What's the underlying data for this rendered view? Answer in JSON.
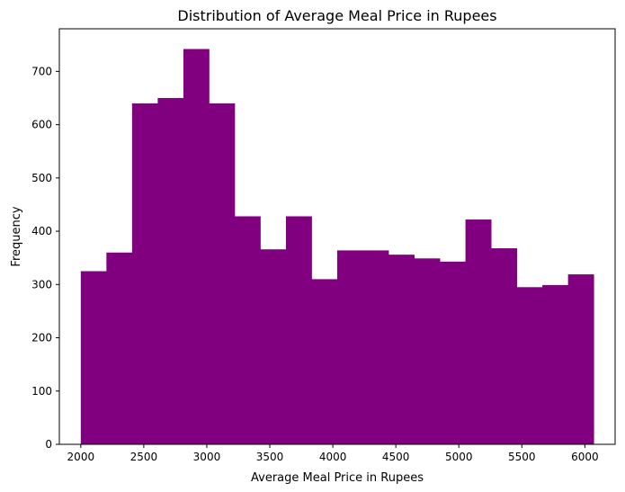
{
  "chart_data": {
    "type": "bar",
    "title": "Distribution of Average Meal Price in Rupees",
    "xlabel": "Average Meal Price in Rupees",
    "ylabel": "Frequency",
    "color": "#800080",
    "bin_edges": [
      2000,
      2203.5,
      2407,
      2610.5,
      2814,
      3017.5,
      3221,
      3424.5,
      3628,
      3831.5,
      4035,
      4238.5,
      4442,
      4645.5,
      4849,
      5052.5,
      5256,
      5459.5,
      5663,
      5866.5,
      6070
    ],
    "values": [
      325,
      360,
      640,
      650,
      742,
      640,
      428,
      366,
      428,
      310,
      364,
      364,
      356,
      349,
      343,
      422,
      368,
      295,
      299,
      319
    ],
    "xlim": [
      1830,
      6240
    ],
    "ylim": [
      0,
      780
    ],
    "xticks": [
      2000,
      2500,
      3000,
      3500,
      4000,
      4500,
      5000,
      5500,
      6000
    ],
    "yticks": [
      0,
      100,
      200,
      300,
      400,
      500,
      600,
      700
    ],
    "grid": false,
    "legend": "none"
  }
}
